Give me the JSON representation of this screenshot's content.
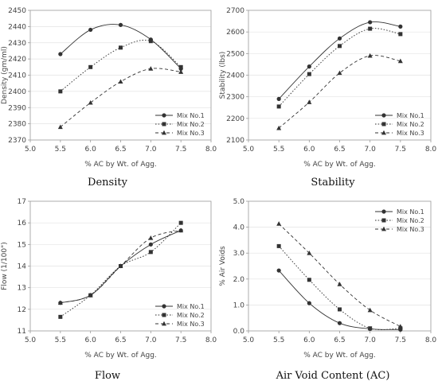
{
  "colors": {
    "series": "#333333",
    "frame": "#9a9a9a",
    "grid": "#e3e3e3",
    "caption": "#111111"
  },
  "chart_data": [
    {
      "type": "line",
      "caption": "Density",
      "xlabel": "% AC by Wt. of Agg.",
      "ylabel": "Density (gm/ml)",
      "xlim": [
        5.0,
        8.0
      ],
      "ylim": [
        2370,
        2450
      ],
      "xticks": [
        "5.0",
        "5.5",
        "6.0",
        "6.5",
        "7.0",
        "7.5",
        "8.0"
      ],
      "yticks": [
        "2370",
        "2380",
        "2390",
        "2400",
        "2410",
        "2420",
        "2430",
        "2440",
        "2450"
      ],
      "grid": "horizontal",
      "legend_position": "bottom-right",
      "x": [
        5.5,
        6.0,
        6.5,
        7.0,
        7.5
      ],
      "series": [
        {
          "name": "Mix No.1",
          "marker": "circle",
          "dash": "solid",
          "values": [
            2423,
            2438,
            2441,
            2432,
            2414
          ]
        },
        {
          "name": "Mix No.2",
          "marker": "square",
          "dash": "dotted",
          "values": [
            2400,
            2415,
            2427,
            2431,
            2415
          ]
        },
        {
          "name": "Mix No.3",
          "marker": "triangle",
          "dash": "dashed",
          "values": [
            2378,
            2393,
            2406,
            2414,
            2412
          ]
        }
      ]
    },
    {
      "type": "line",
      "caption": "Stability",
      "xlabel": "% AC by Wt. of Agg.",
      "ylabel": "Stability (lbs)",
      "xlim": [
        5.0,
        8.0
      ],
      "ylim": [
        2100,
        2700
      ],
      "xticks": [
        "5.0",
        "5.5",
        "6.0",
        "6.5",
        "7.0",
        "7.5",
        "8.0"
      ],
      "yticks": [
        "2100",
        "2200",
        "2300",
        "2400",
        "2500",
        "2600",
        "2700"
      ],
      "grid": "horizontal",
      "legend_position": "bottom-right",
      "x": [
        5.5,
        6.0,
        6.5,
        7.0,
        7.5
      ],
      "series": [
        {
          "name": "Mix No.1",
          "marker": "circle",
          "dash": "solid",
          "values": [
            2290,
            2440,
            2570,
            2645,
            2625
          ]
        },
        {
          "name": "Mix No.2",
          "marker": "square",
          "dash": "dotted",
          "values": [
            2255,
            2405,
            2535,
            2615,
            2590
          ]
        },
        {
          "name": "Mix No.3",
          "marker": "triangle",
          "dash": "dashed",
          "values": [
            2155,
            2275,
            2410,
            2490,
            2465
          ]
        }
      ]
    },
    {
      "type": "line",
      "caption": "Flow",
      "xlabel": "% AC by Wt. of Agg.",
      "ylabel": "Flow (1/100\")",
      "xlim": [
        5.0,
        8.0
      ],
      "ylim": [
        11,
        17
      ],
      "xticks": [
        "5.0",
        "5.5",
        "6.0",
        "6.5",
        "7.0",
        "7.5",
        "8.0"
      ],
      "yticks": [
        "11",
        "12",
        "13",
        "14",
        "15",
        "16",
        "17"
      ],
      "grid": "horizontal",
      "legend_position": "bottom-right",
      "x": [
        5.5,
        6.0,
        6.5,
        7.0,
        7.5
      ],
      "series": [
        {
          "name": "Mix No.1",
          "marker": "circle",
          "dash": "solid",
          "values": [
            12.3,
            12.65,
            14.0,
            15.0,
            15.65
          ]
        },
        {
          "name": "Mix No.2",
          "marker": "square",
          "dash": "dotted",
          "values": [
            11.65,
            12.65,
            14.0,
            14.65,
            16.0
          ]
        },
        {
          "name": "Mix No.3",
          "marker": "triangle",
          "dash": "dashed",
          "values": [
            12.3,
            12.65,
            14.0,
            15.3,
            15.65
          ]
        }
      ]
    },
    {
      "type": "line",
      "caption": "Air Void Content (AC)",
      "xlabel": "% AC by Wt. of Agg.",
      "ylabel": "% Air Voids",
      "xlim": [
        5.0,
        8.0
      ],
      "ylim": [
        0.0,
        5.0
      ],
      "xticks": [
        "5.0",
        "5.5",
        "6.0",
        "6.5",
        "7.0",
        "7.5",
        "8.0"
      ],
      "yticks": [
        "0.0",
        "1.0",
        "2.0",
        "3.0",
        "4.0",
        "5.0"
      ],
      "grid": "horizontal",
      "legend_position": "top-right",
      "x": [
        5.5,
        6.0,
        6.5,
        7.0,
        7.5
      ],
      "series": [
        {
          "name": "Mix No.1",
          "marker": "circle",
          "dash": "solid",
          "values": [
            2.33,
            1.07,
            0.3,
            0.08,
            0.05
          ]
        },
        {
          "name": "Mix No.2",
          "marker": "square",
          "dash": "dotted",
          "values": [
            3.27,
            1.97,
            0.83,
            0.1,
            0.1
          ]
        },
        {
          "name": "Mix No.3",
          "marker": "triangle",
          "dash": "dashed",
          "values": [
            4.13,
            3.0,
            1.8,
            0.8,
            0.17
          ]
        }
      ]
    }
  ]
}
